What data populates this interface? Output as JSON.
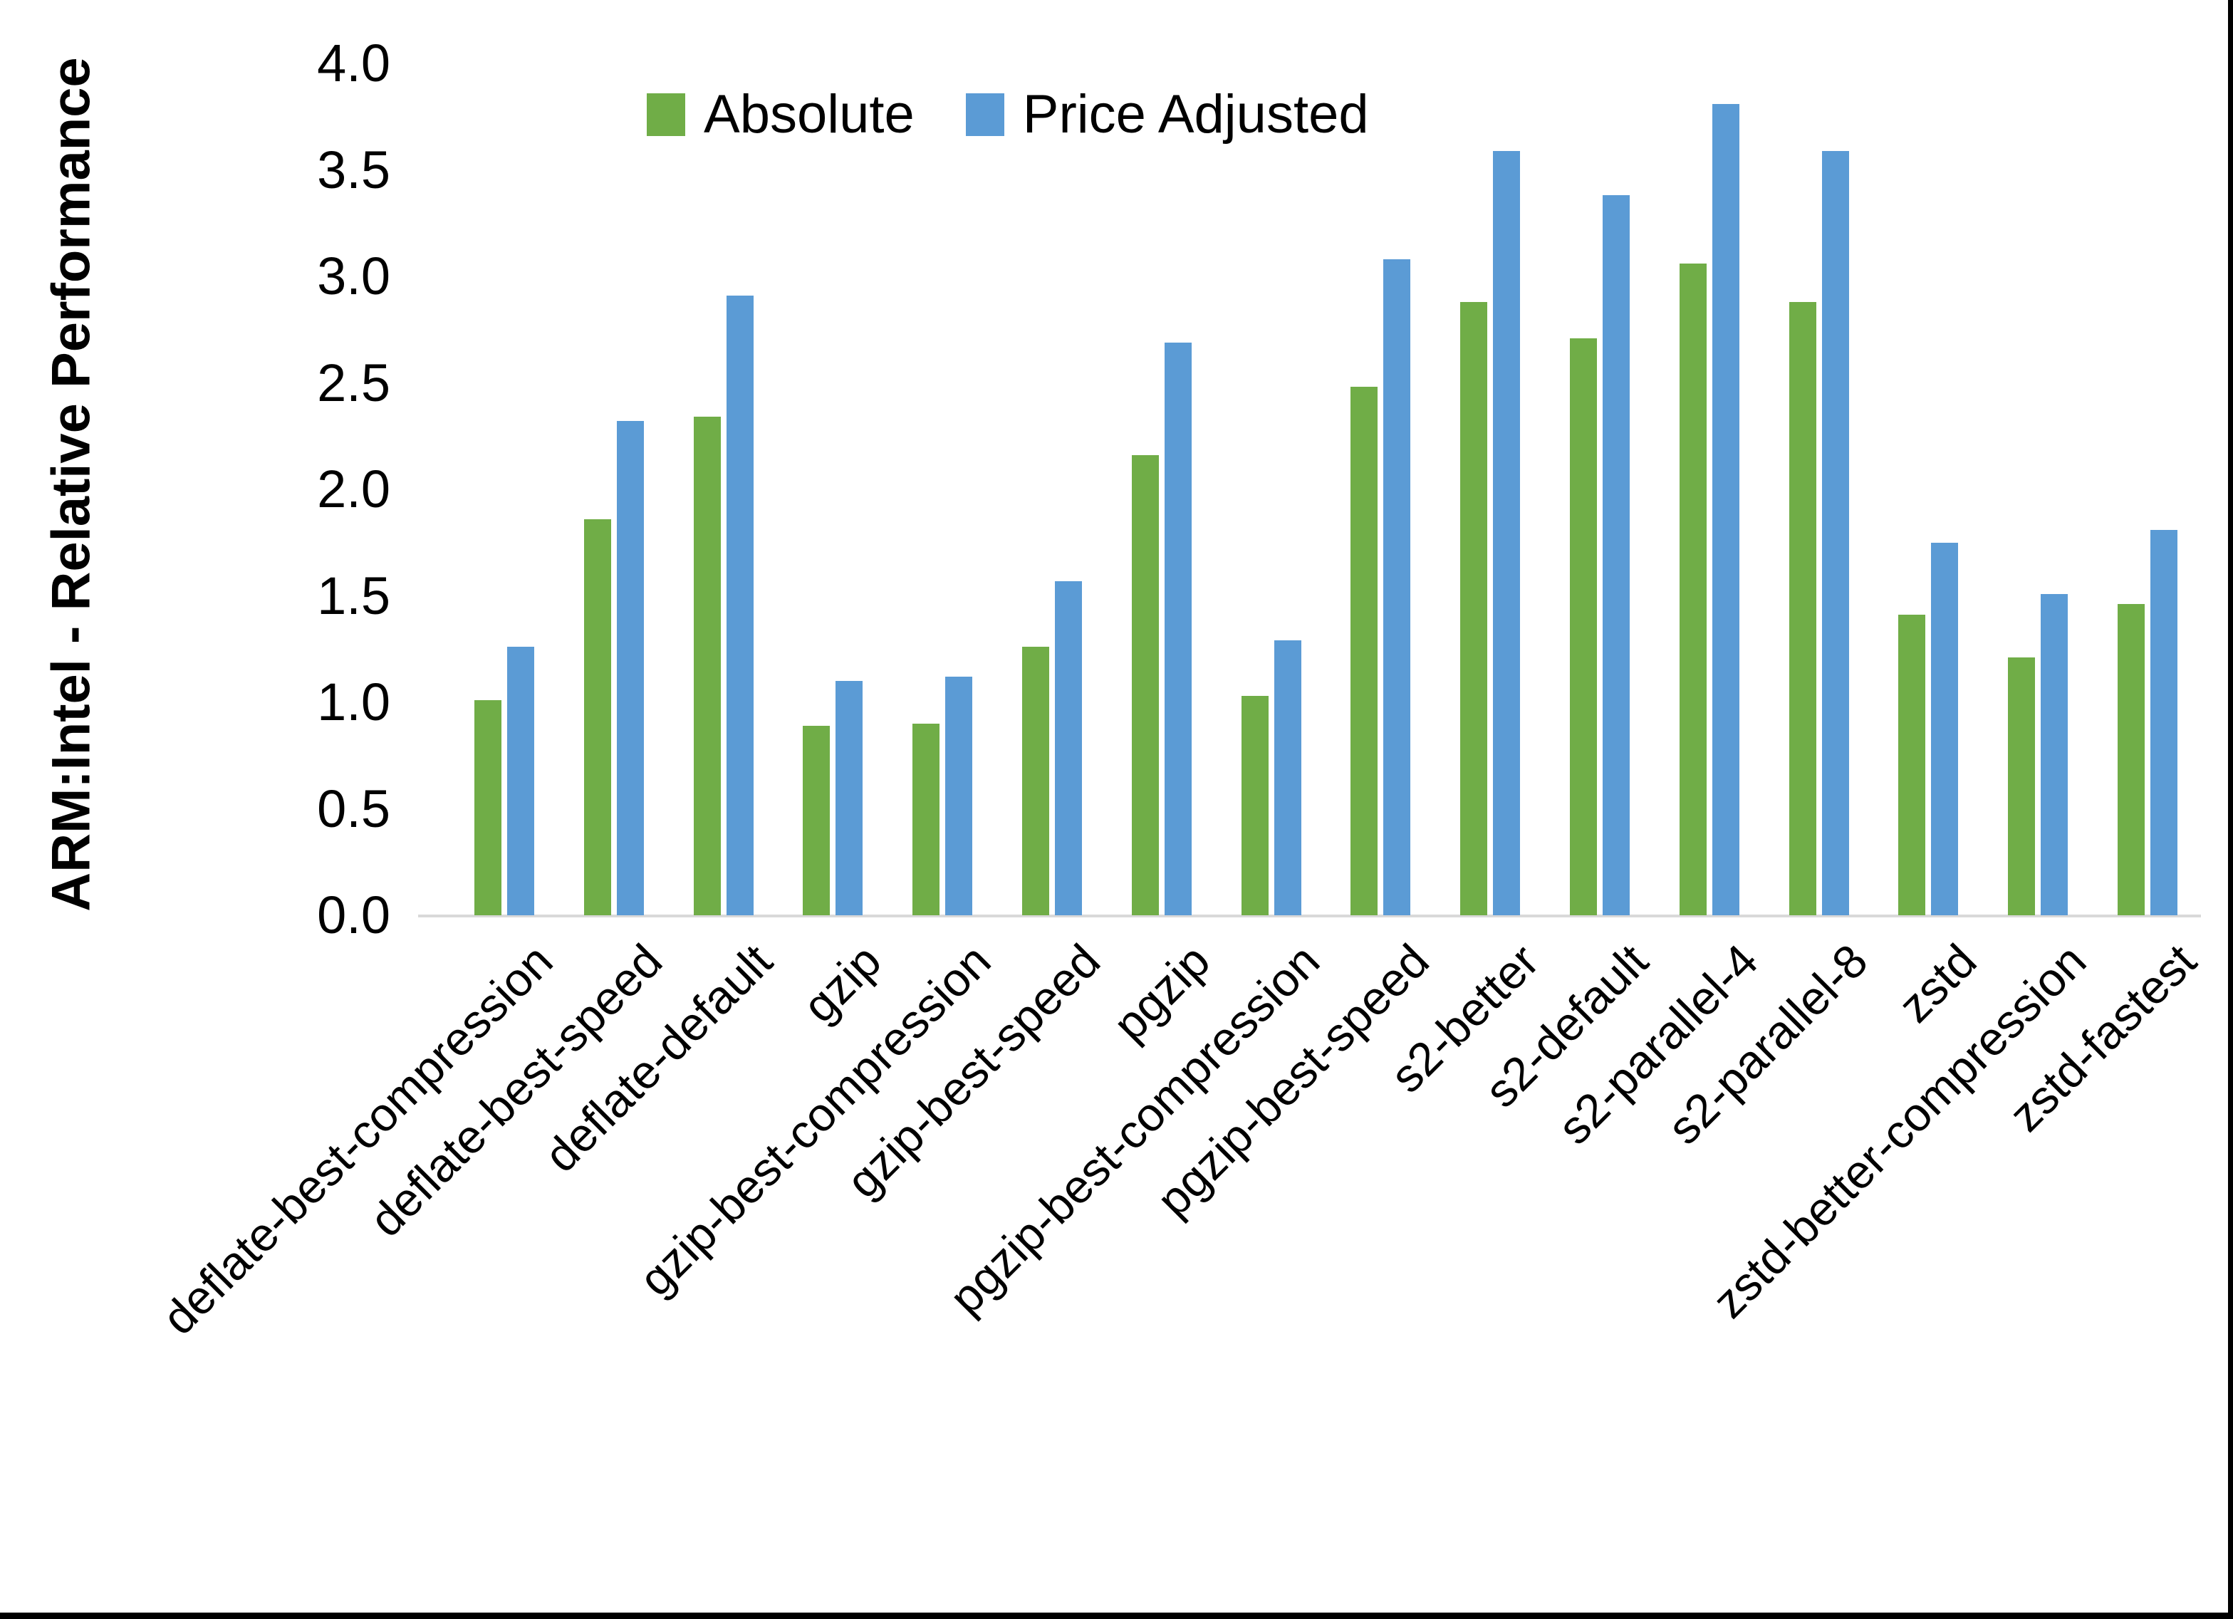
{
  "chart_data": {
    "type": "bar",
    "title": "",
    "ylabel": "ARM:Intel - Relative Performance",
    "xlabel": "",
    "categories": [
      "deflate-best-compression",
      "deflate-best-speed",
      "deflate-default",
      "gzip",
      "gzip-best-compression",
      "gzip-best-speed",
      "pgzip",
      "pgzip-best-compression",
      "pgzip-best-speed",
      "s2-better",
      "s2-default",
      "s2-parallel-4",
      "s2-parallel-8",
      "zstd",
      "zstd-better-compression",
      "zstd-fastest"
    ],
    "series": [
      {
        "name": "Absolute",
        "color": "#70AD47",
        "values": [
          1.01,
          1.86,
          2.34,
          0.89,
          0.9,
          1.26,
          2.16,
          1.03,
          2.48,
          2.88,
          2.71,
          3.06,
          2.88,
          1.41,
          1.21,
          1.46
        ]
      },
      {
        "name": "Price Adjusted",
        "color": "#5B9BD5",
        "values": [
          1.26,
          2.32,
          2.91,
          1.1,
          1.12,
          1.57,
          2.69,
          1.29,
          3.08,
          3.59,
          3.38,
          3.81,
          3.59,
          1.75,
          1.51,
          1.81
        ]
      }
    ],
    "ylim": [
      0.0,
      4.0
    ],
    "ytick_labels": [
      "0.0",
      "0.5",
      "1.0",
      "1.5",
      "2.0",
      "2.5",
      "3.0",
      "3.5",
      "4.0"
    ],
    "grid": false,
    "legend_position": "top-center"
  },
  "frame": {
    "background": "#FFFFFF",
    "axis_line_color": "#D9D9D9",
    "text_color": "#000000",
    "border_color": "#000000"
  }
}
